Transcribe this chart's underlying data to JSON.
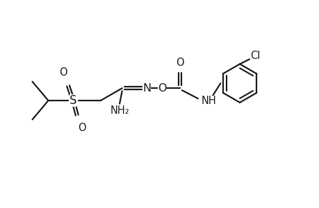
{
  "background_color": "#ffffff",
  "line_color": "#1a1a1a",
  "line_width": 1.6,
  "font_size": 10.5,
  "atoms": {
    "S_label": "S",
    "O_label": "O",
    "N_label": "N",
    "NH2_label": "NH₂",
    "NH_label": "NH",
    "Cl_label": "Cl"
  }
}
